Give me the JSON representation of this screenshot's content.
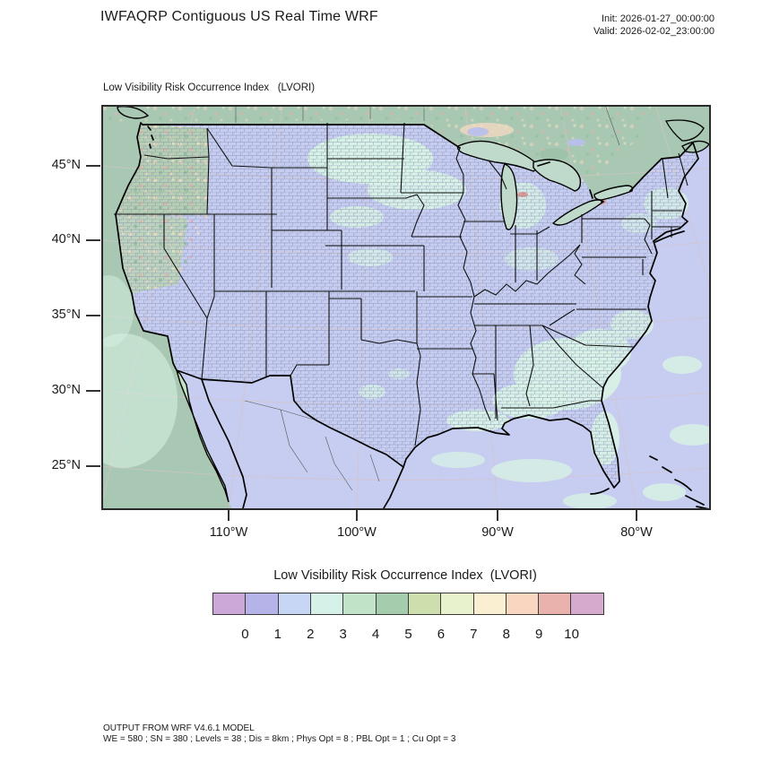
{
  "header": {
    "title": "IWFAQRP Contiguous US Real Time WRF",
    "init_line": "Init: 2026-01-27_00:00:00",
    "valid_line": "Valid: 2026-02-02_23:00:00"
  },
  "map": {
    "subtitle": "Low Visibility Risk Occurrence Index   (LVORI)",
    "y_axis": {
      "ticks": [
        "45°N",
        "40°N",
        "35°N",
        "30°N",
        "25°N"
      ]
    },
    "x_axis": {
      "ticks": [
        "110°W",
        "100°W",
        "90°W",
        "80°W"
      ]
    },
    "fill_colors": {
      "pacific_sage": "#a9c8b3",
      "land_ocean_periwinkle": "#c6cdf0",
      "mint_patch": "#d8f3e4",
      "lake_fill": "#bfd9cb",
      "pnw_green": "#b5ceae",
      "baja_green": "#c2e2c0",
      "county_line": "#7e8cb0",
      "graticule_pink": "#d8c2c6"
    }
  },
  "legend": {
    "title": "Low Visibility Risk Occurrence Index  (LVORI)",
    "tick_labels": [
      "0",
      "1",
      "2",
      "3",
      "4",
      "5",
      "6",
      "7",
      "8",
      "9",
      "10"
    ],
    "box_colors": [
      "#cba8d8",
      "#b6b3e8",
      "#c8d6f6",
      "#d5f1e8",
      "#c1e4c8",
      "#a6ccae",
      "#cedfae",
      "#e8f2cc",
      "#faf0d1",
      "#f9d6bf",
      "#e9b2ad",
      "#d6aacd"
    ]
  },
  "footer": {
    "line1": "OUTPUT FROM WRF V4.6.1 MODEL",
    "line2": "WE = 580 ; SN = 380 ; Levels = 38 ; Dis = 8km ; Phys Opt = 8 ; PBL Opt = 1 ; Cu Opt = 3"
  }
}
